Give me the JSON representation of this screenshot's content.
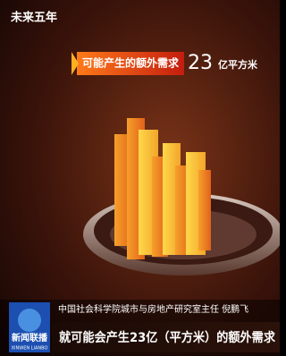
{
  "header": {
    "title": "未来五年"
  },
  "banner": {
    "label": "可能产生的额外需求",
    "number": 23,
    "unit": "亿平方米"
  },
  "caption": {
    "speaker": "中国社会科学院城市与房地产研究室主任 倪鹏飞",
    "subtitle": "就可能会产生23亿（平方米）的额外需求"
  },
  "logo": {
    "name": "新闻联播",
    "romanized": "XINWEN LIANBO"
  }
}
